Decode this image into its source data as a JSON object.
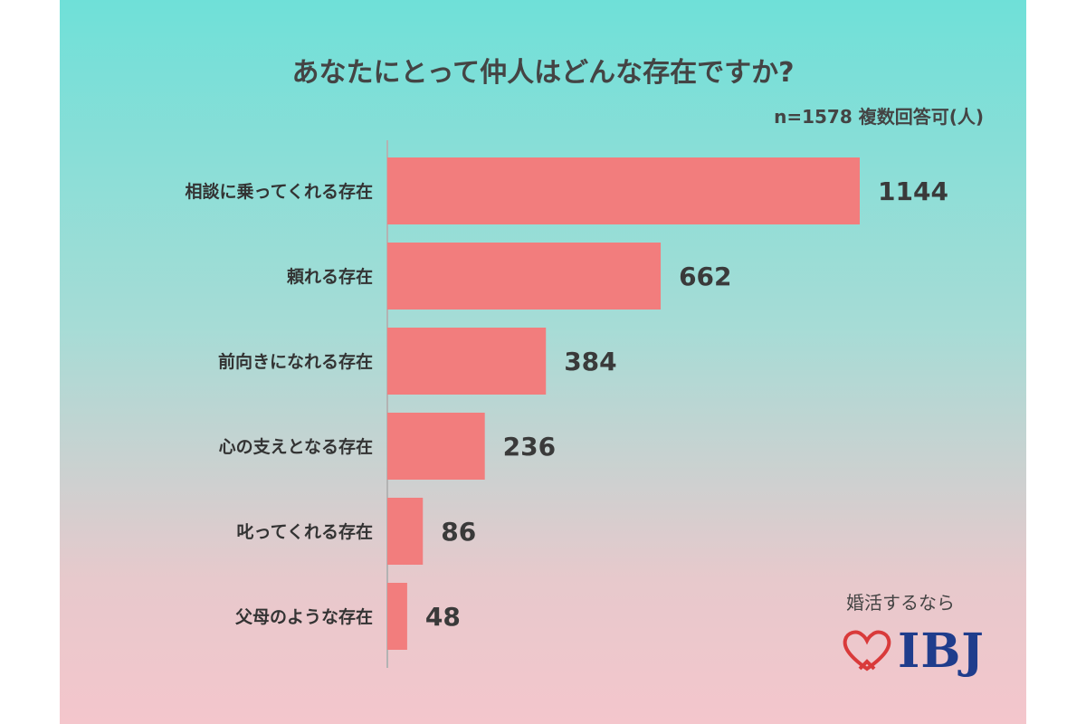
{
  "colors": {
    "bar": "#f27d7d",
    "axis": "#b3b3b3",
    "frame_top": "#6fe0d8",
    "frame_bottom": "#f4c6cc",
    "logo_blue": "#1f3d8c",
    "logo_red": "#d93a3a"
  },
  "chart_data": {
    "type": "bar",
    "orientation": "horizontal",
    "title": "あなたにとって仲人はどんな存在ですか?",
    "subtitle": "n=1578 複数回答可(人)",
    "categories": [
      "相談に乗ってくれる存在",
      "頼れる存在",
      "前向きになれる存在",
      "心の支えとなる存在",
      "叱ってくれる存在",
      "父母のような存在"
    ],
    "values": [
      1144,
      662,
      384,
      236,
      86,
      48
    ],
    "xlabel": "",
    "ylabel": "",
    "xlim": [
      0,
      1144
    ],
    "grid": false,
    "legend": "none"
  },
  "logo": {
    "tagline": "婚活するなら",
    "brand": "IBJ",
    "icon": "heart-outline-icon"
  }
}
